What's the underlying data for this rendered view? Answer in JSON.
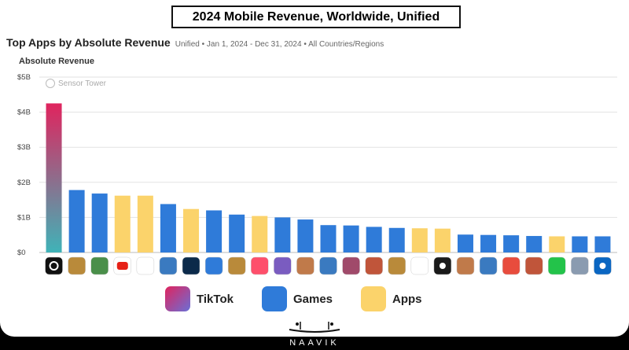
{
  "banner_title": "2024 Mobile Revenue, Worldwide, Unified",
  "heading": {
    "title": "Top Apps by Absolute Revenue",
    "subtitle": "Unified • Jan 1, 2024 - Dec 31, 2024 • All Countries/Regions"
  },
  "watermark": "Sensor Tower",
  "footer": "NAAVIK",
  "colors": {
    "tiktok_gradient": [
      "#e0245e",
      "#3fb3b8"
    ],
    "games": "#2f7bd9",
    "apps": "#fbd36b"
  },
  "legend": [
    {
      "label": "TikTok",
      "key": "tiktok"
    },
    {
      "label": "Games",
      "key": "games"
    },
    {
      "label": "Apps",
      "key": "apps"
    }
  ],
  "chart_data": {
    "type": "bar",
    "title": "",
    "ylabel": "Absolute Revenue",
    "xlabel": "",
    "ylim": [
      0,
      5
    ],
    "yticks": [
      "$0",
      "$1B",
      "$2B",
      "$3B",
      "$4B",
      "$5B"
    ],
    "grid": true,
    "legend_position": "bottom",
    "values": [
      4.25,
      1.78,
      1.68,
      1.62,
      1.62,
      1.38,
      1.24,
      1.2,
      1.08,
      1.04,
      1.0,
      0.94,
      0.78,
      0.77,
      0.73,
      0.7,
      0.69,
      0.68,
      0.51,
      0.5,
      0.49,
      0.47,
      0.46,
      0.46,
      0.46
    ],
    "kinds": [
      "tiktok",
      "games",
      "games",
      "apps",
      "apps",
      "games",
      "apps",
      "games",
      "games",
      "apps",
      "games",
      "games",
      "games",
      "games",
      "games",
      "games",
      "apps",
      "apps",
      "games",
      "games",
      "games",
      "games",
      "apps",
      "games",
      "games"
    ],
    "icons": [
      "tiktok-icon",
      "game-icon",
      "game-icon",
      "youtube-icon",
      "google-one-icon",
      "game-icon",
      "disney-plus-icon",
      "roblox-icon",
      "game-icon",
      "tinder-icon",
      "game-icon",
      "game-icon",
      "game-icon",
      "game-icon",
      "game-icon",
      "game-icon",
      "tencent-video-icon",
      "max-icon",
      "game-icon",
      "game-icon",
      "pokemon-go-icon",
      "game-icon",
      "iqiyi-icon",
      "pubg-icon",
      "linkedin-icon"
    ]
  }
}
